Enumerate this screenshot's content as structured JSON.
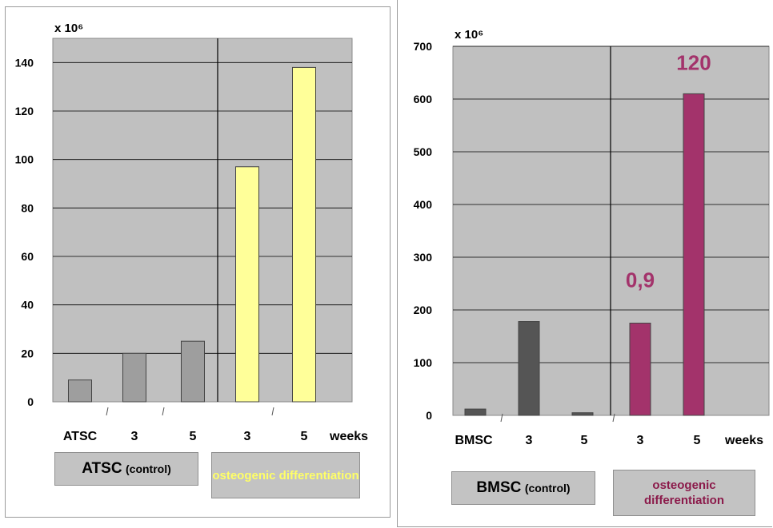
{
  "chart_data": [
    {
      "type": "bar",
      "scale_label": "x 10⁶",
      "categories": [
        "ATSC",
        "3",
        "5",
        "3",
        "5"
      ],
      "x_unit_label": "weeks",
      "ylim": [
        0,
        150
      ],
      "yticks": [
        0,
        20,
        40,
        60,
        80,
        100,
        120,
        140
      ],
      "grid": true,
      "values": [
        9,
        20,
        25,
        97,
        138
      ],
      "bar_colors": [
        "#9e9e9e",
        "#9e9e9e",
        "#9e9e9e",
        "#ffff99",
        "#ffff99"
      ],
      "annotations": [],
      "groups": [
        {
          "label": "ATSC",
          "sublabel": "(control)",
          "text_color": "#000000"
        },
        {
          "label": "osteogenic differentiation",
          "sublabel": "",
          "text_color": "#ffff66"
        }
      ]
    },
    {
      "type": "bar",
      "scale_label": "x 10⁶",
      "categories": [
        "BMSC",
        "3",
        "5",
        "3",
        "5"
      ],
      "x_unit_label": "weeks",
      "ylim": [
        0,
        700
      ],
      "yticks": [
        0,
        100,
        200,
        300,
        400,
        500,
        600,
        700
      ],
      "grid": true,
      "values": [
        12,
        178,
        5,
        175,
        610
      ],
      "bar_colors": [
        "#555555",
        "#555555",
        "#555555",
        "#a3336b",
        "#a3336b"
      ],
      "annotations": [
        {
          "text": "0,9",
          "color": "#a3336b"
        },
        {
          "text": "120",
          "color": "#a3336b"
        }
      ],
      "groups": [
        {
          "label": "BMSC",
          "sublabel": "(control)",
          "text_color": "#000000"
        },
        {
          "label": "osteogenic differentiation",
          "sublabel": "",
          "text_color": "#8b1a4a"
        }
      ]
    }
  ]
}
